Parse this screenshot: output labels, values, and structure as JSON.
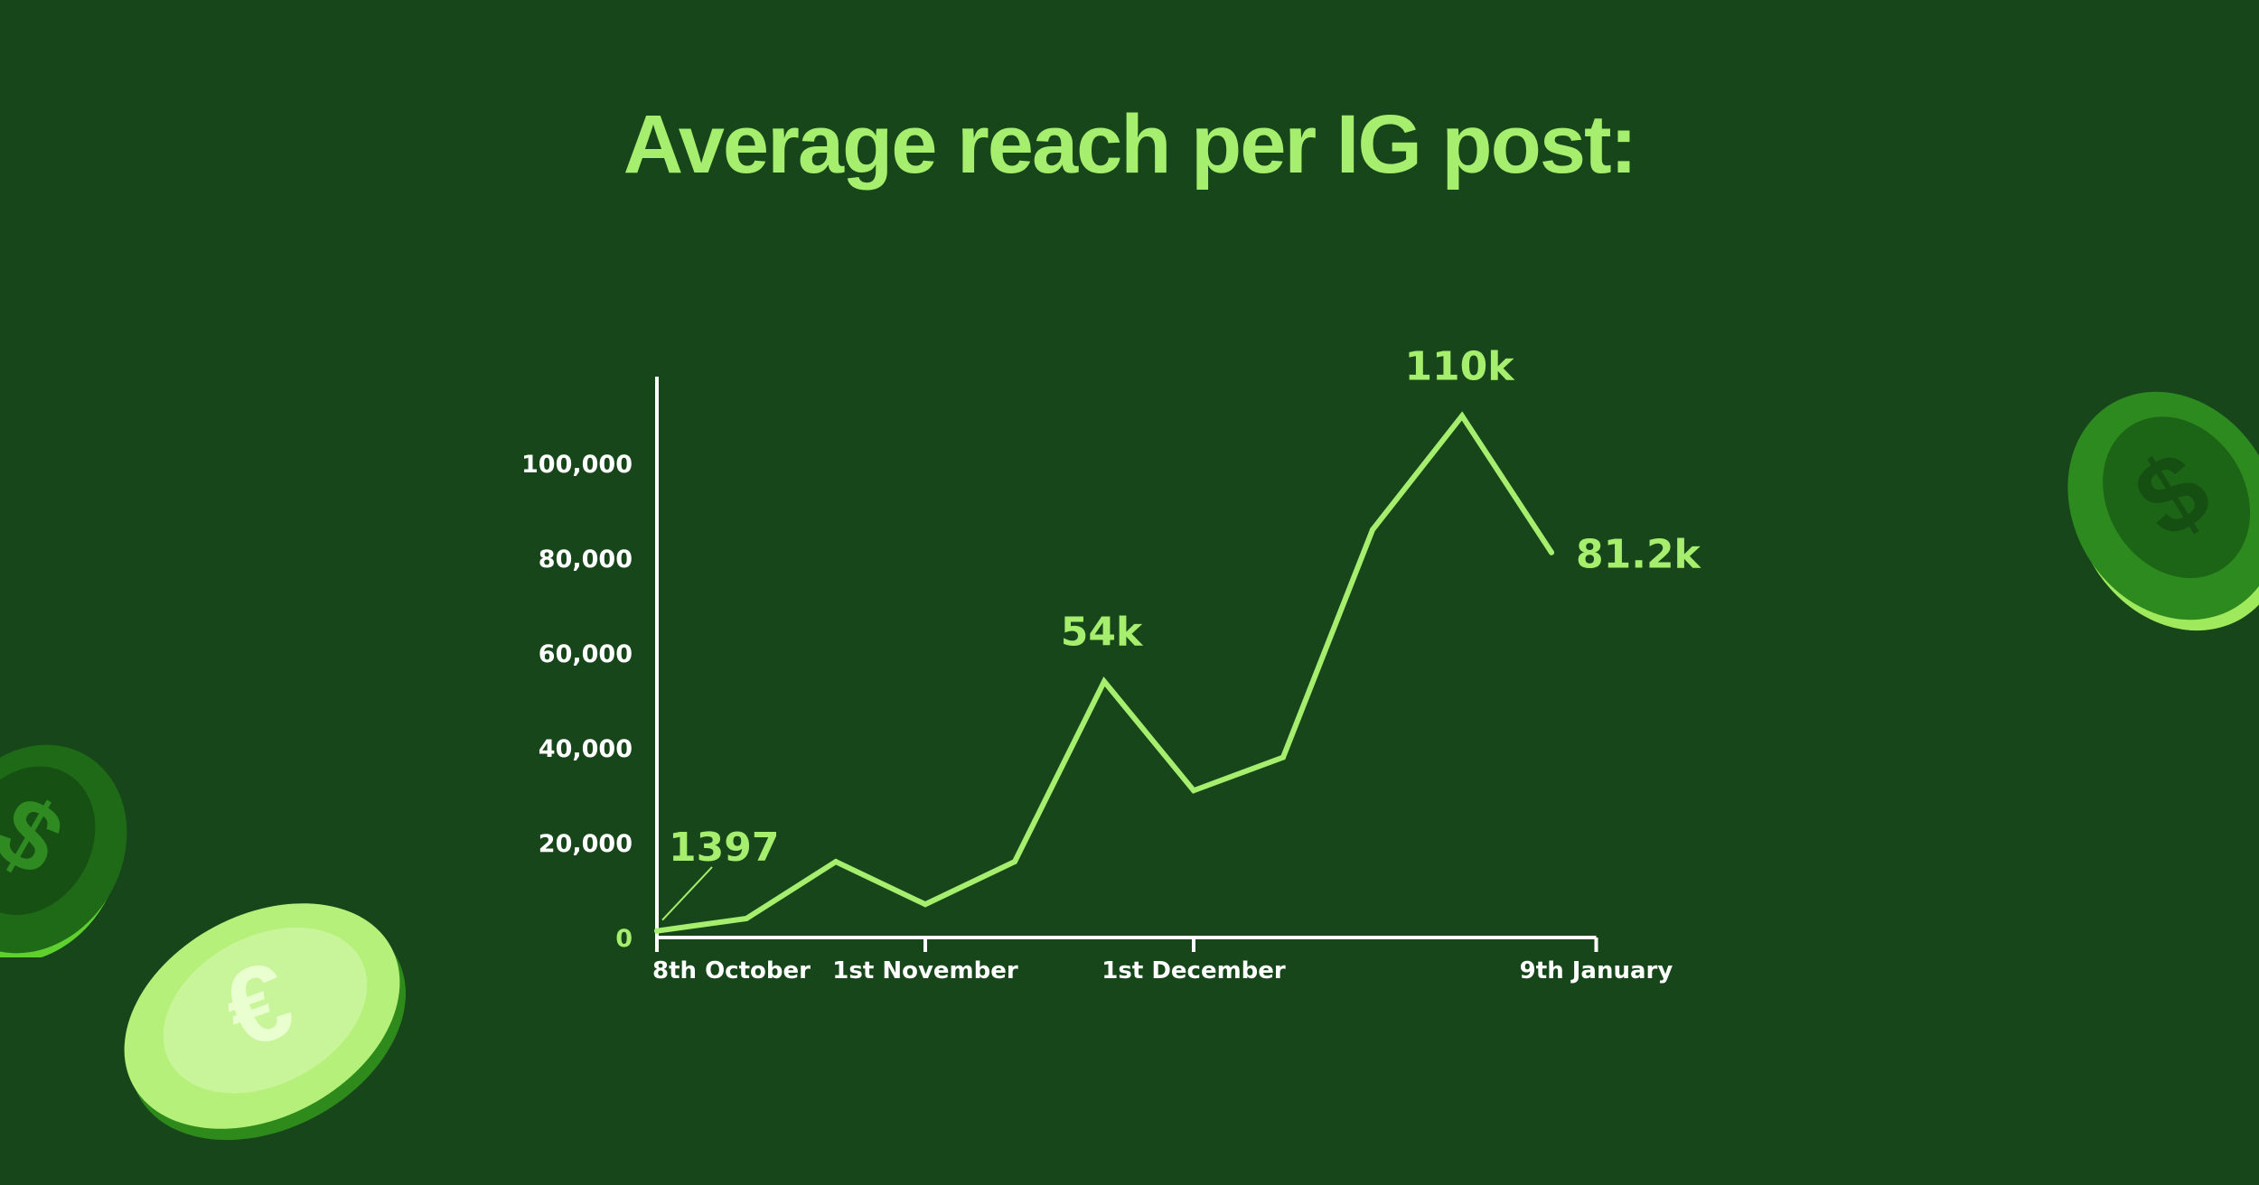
{
  "title": "Average reach per IG post:",
  "colors": {
    "background": "#17461a",
    "accent": "#a6ee6e",
    "axis": "#ffffff"
  },
  "decorations": [
    "euro-coin-icon",
    "dollar-coin-icon",
    "dollar-coin-icon"
  ],
  "chart_data": {
    "type": "line",
    "title": "Average reach per IG post:",
    "xlabel": "",
    "ylabel": "",
    "ylim": [
      0,
      110000
    ],
    "grid": false,
    "legend": "none",
    "y_ticks": [
      {
        "value": 0,
        "label": "0"
      },
      {
        "value": 20000,
        "label": "20,000"
      },
      {
        "value": 40000,
        "label": "40,000"
      },
      {
        "value": 60000,
        "label": "60,000"
      },
      {
        "value": 80000,
        "label": "80,000"
      },
      {
        "value": 100000,
        "label": "100,000"
      }
    ],
    "x_ticks": [
      {
        "index": 0,
        "label": "8th October"
      },
      {
        "index": 3,
        "label": "1st November"
      },
      {
        "index": 6,
        "label": "1st December"
      },
      {
        "index": 10.5,
        "label": "9th January"
      }
    ],
    "series": [
      {
        "values": [
          1397,
          4000,
          16000,
          7000,
          16000,
          54000,
          31000,
          38000,
          86000,
          110000,
          81200
        ]
      }
    ],
    "annotations": [
      {
        "index": 0,
        "value": 1397,
        "label": "1397"
      },
      {
        "index": 5,
        "value": 54000,
        "label": "54k"
      },
      {
        "index": 9,
        "value": 110000,
        "label": "110k"
      },
      {
        "index": 10,
        "value": 81200,
        "label": "81.2k"
      }
    ]
  }
}
